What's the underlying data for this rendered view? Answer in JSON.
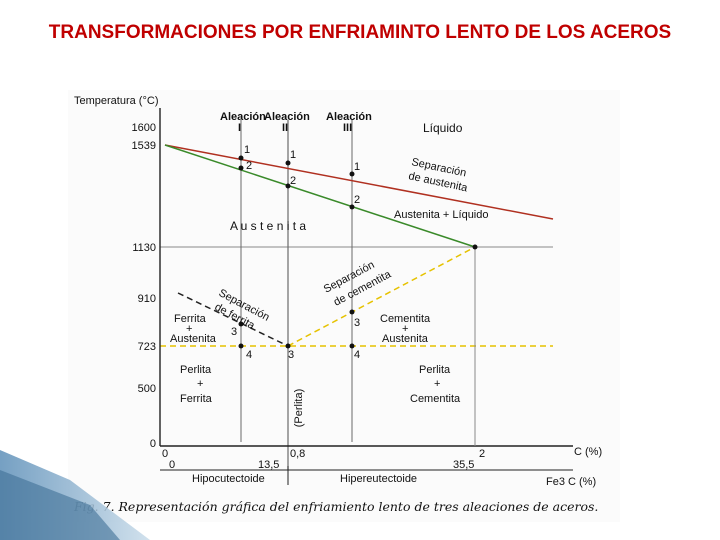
{
  "slide": {
    "title": "TRANSFORMACIONES POR ENFRIAMINTO LENTO DE LOS ACEROS",
    "title_color": "#c00000"
  },
  "diagram": {
    "y_axis_label": "Temperatura (°C)",
    "y_ticks": [
      "1600",
      "1539",
      "1130",
      "910",
      "723",
      "500",
      "0"
    ],
    "alloys": [
      "Aleación",
      "Aleación",
      "Aleación"
    ],
    "alloy_numerals": [
      "I",
      "II",
      "III"
    ],
    "regions": {
      "liquido": "Líquido",
      "austenita": "A u s t e n i t a",
      "austenita_liquido": "Austenita + Líquido",
      "ferrita": "Ferrita",
      "ferrita_austenita": "Austenita",
      "cementita": "Cementita",
      "cementita_austenita": "Austenita",
      "perlita_ferrita_1": "Perlita",
      "perlita_ferrita_2": "Ferrita",
      "perlita_cementita_1": "Perlita",
      "perlita_cementita_2": "Cementita",
      "perlita_vertical": "(Perlita)",
      "plus": "+"
    },
    "rotated_labels": {
      "sep_austenita_1": "Separación",
      "sep_austenita_2": "de austenita",
      "sep_ferrita_1": "Separación",
      "sep_ferrita_2": "de ferrita",
      "sep_cementita_1": "Separación",
      "sep_cementita_2": "de cementita"
    },
    "points": {
      "p1": "1",
      "p2": "2",
      "p3": "3",
      "p4": "4"
    },
    "x_axis": {
      "c_label": "C (%)",
      "fe3c_label": "Fe3 C (%)",
      "c_ticks": [
        "0",
        "0,8",
        "2"
      ],
      "fe3c_ticks": [
        "0",
        "13,5",
        "35,5"
      ],
      "hipo": "Hipocutectoide",
      "hiper": "Hipereutectoide"
    },
    "caption": "Fig. 7. Representación gráfica del enfriamiento lento de tres aleaciones de aceros.",
    "colors": {
      "liquidus": "#b03020",
      "solidus": "#3a8a2a",
      "dashed_yellow": "#e6c200",
      "grid": "#8a8a8a"
    }
  }
}
